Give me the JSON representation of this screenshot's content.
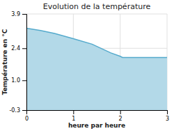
{
  "chart_data": {
    "type": "area",
    "title": "Evolution de la température",
    "x_label": "heure par heure",
    "y_label": "Température en °C",
    "x": [
      0,
      0.3,
      0.6,
      1.0,
      1.4,
      1.8,
      2.0,
      2.05,
      3.0
    ],
    "values": [
      3.28,
      3.18,
      3.05,
      2.82,
      2.58,
      2.2,
      2.05,
      2.0,
      2.0
    ],
    "color": "#55aacc",
    "xlim": [
      0,
      3
    ],
    "ylim": [
      -0.3,
      3.9
    ],
    "xticks": [
      0,
      1,
      2,
      3
    ],
    "yticks": [
      -0.3,
      {
        "value": 1.0,
        "label": "1.0"
      },
      2.4,
      3.9
    ],
    "grid": true
  }
}
